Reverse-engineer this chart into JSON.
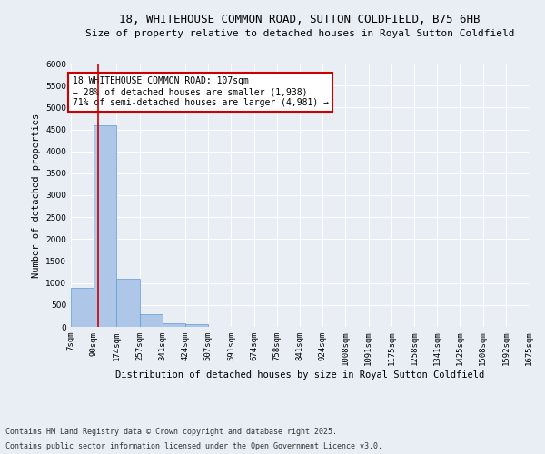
{
  "title1": "18, WHITEHOUSE COMMON ROAD, SUTTON COLDFIELD, B75 6HB",
  "title2": "Size of property relative to detached houses in Royal Sutton Coldfield",
  "xlabel": "Distribution of detached houses by size in Royal Sutton Coldfield",
  "ylabel": "Number of detached properties",
  "bin_edges": [
    7,
    90,
    174,
    257,
    341,
    424,
    507,
    591,
    674,
    758,
    841,
    924,
    1008,
    1091,
    1175,
    1258,
    1341,
    1425,
    1508,
    1592,
    1675
  ],
  "bar_heights": [
    900,
    4600,
    1100,
    300,
    80,
    60,
    0,
    0,
    0,
    0,
    0,
    0,
    0,
    0,
    0,
    0,
    0,
    0,
    0,
    0
  ],
  "bar_color": "#aec6e8",
  "bar_edge_color": "#5b9bd5",
  "property_size": 107,
  "red_line_color": "#cc0000",
  "ylim": [
    0,
    6000
  ],
  "yticks": [
    0,
    500,
    1000,
    1500,
    2000,
    2500,
    3000,
    3500,
    4000,
    4500,
    5000,
    5500,
    6000
  ],
  "annotation_text": "18 WHITEHOUSE COMMON ROAD: 107sqm\n← 28% of detached houses are smaller (1,938)\n71% of semi-detached houses are larger (4,981) →",
  "annotation_box_color": "#ffffff",
  "annotation_box_edge": "#cc0000",
  "bg_color": "#e8eef4",
  "footer1": "Contains HM Land Registry data © Crown copyright and database right 2025.",
  "footer2": "Contains public sector information licensed under the Open Government Licence v3.0.",
  "title1_fontsize": 9,
  "title2_fontsize": 8,
  "xlabel_fontsize": 7.5,
  "ylabel_fontsize": 7.5,
  "annot_fontsize": 7,
  "tick_fontsize": 6.5,
  "footer_fontsize": 6
}
